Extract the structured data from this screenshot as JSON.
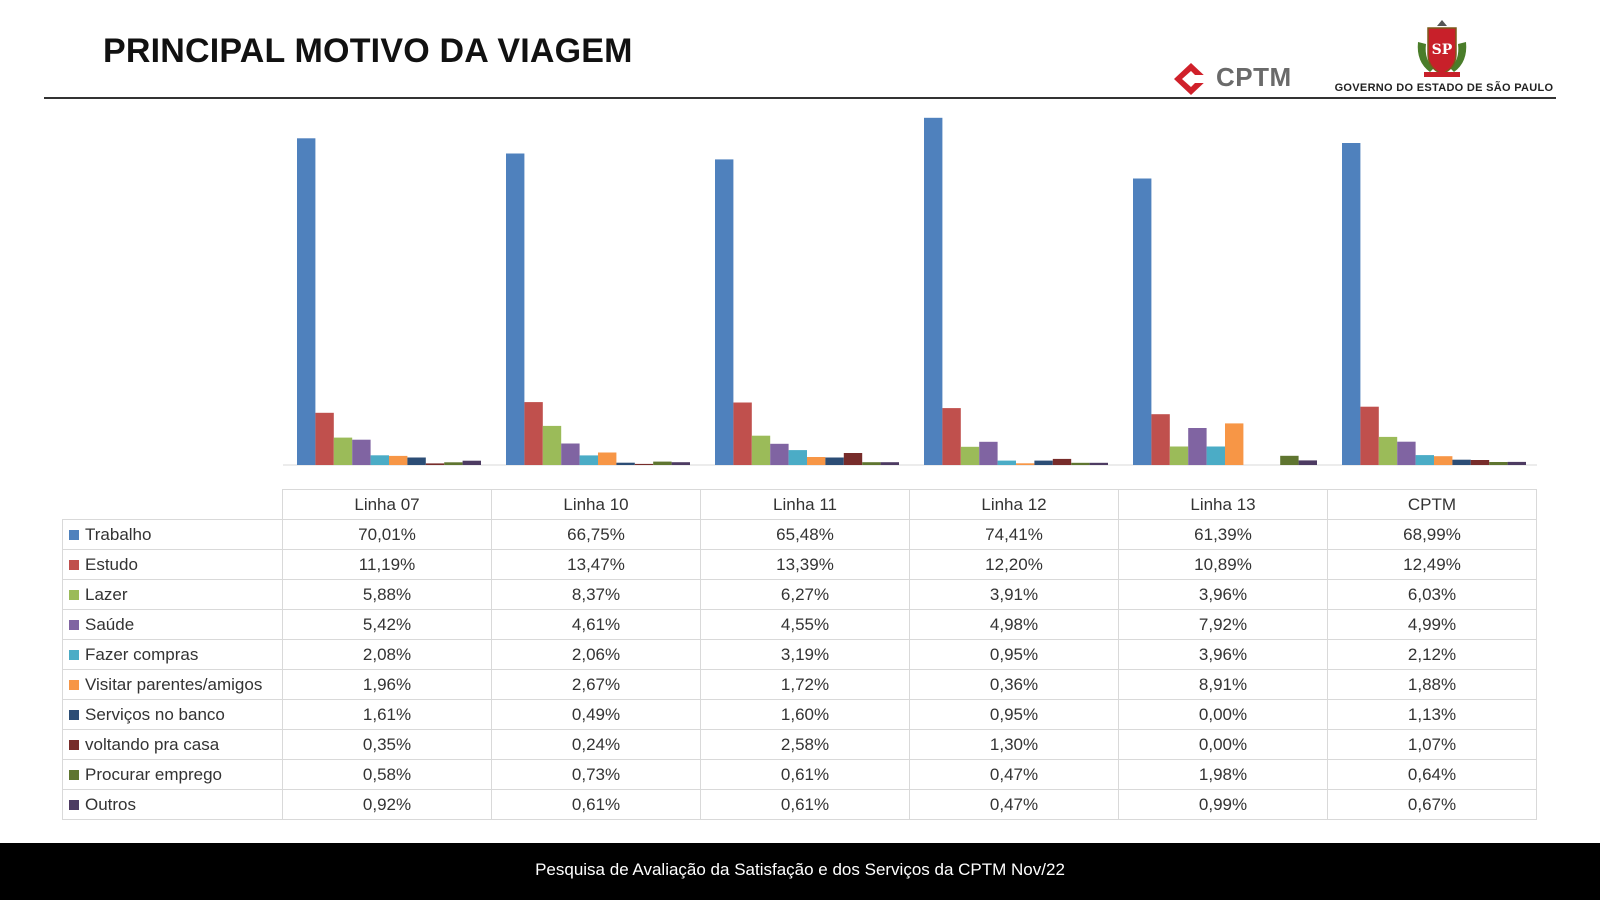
{
  "header": {
    "title": "PRINCIPAL MOTIVO DA VIAGEM",
    "cptm_logo_text": "CPTM",
    "gov_logo_text": "GOVERNO DO ESTADO DE SÃO PAULO",
    "seal_monogram": "SP",
    "brand_red": "#d0202a"
  },
  "footer": {
    "text": "Pesquisa de Avaliação da Satisfação e dos Serviços da CPTM Nov/22"
  },
  "chart_data": {
    "type": "bar",
    "categories": [
      "Linha 07",
      "Linha 10",
      "Linha 11",
      "Linha 12",
      "Linha 13",
      "CPTM"
    ],
    "ylim": [
      0,
      75
    ],
    "grid": false,
    "legend": "table-left",
    "series": [
      {
        "name": "Trabalho",
        "color": "#4f81bd",
        "values": [
          70.01,
          66.75,
          65.48,
          74.41,
          61.39,
          68.99
        ],
        "labels": [
          "70,01%",
          "66,75%",
          "65,48%",
          "74,41%",
          "61,39%",
          "68,99%"
        ]
      },
      {
        "name": "Estudo",
        "color": "#c0504d",
        "values": [
          11.19,
          13.47,
          13.39,
          12.2,
          10.89,
          12.49
        ],
        "labels": [
          "11,19%",
          "13,47%",
          "13,39%",
          "12,20%",
          "10,89%",
          "12,49%"
        ]
      },
      {
        "name": "Lazer",
        "color": "#9bbb59",
        "values": [
          5.88,
          8.37,
          6.27,
          3.91,
          3.96,
          6.03
        ],
        "labels": [
          "5,88%",
          "8,37%",
          "6,27%",
          "3,91%",
          "3,96%",
          "6,03%"
        ]
      },
      {
        "name": "Saúde",
        "color": "#8064a2",
        "values": [
          5.42,
          4.61,
          4.55,
          4.98,
          7.92,
          4.99
        ],
        "labels": [
          "5,42%",
          "4,61%",
          "4,55%",
          "4,98%",
          "7,92%",
          "4,99%"
        ]
      },
      {
        "name": "Fazer compras",
        "color": "#4bacc6",
        "values": [
          2.08,
          2.06,
          3.19,
          0.95,
          3.96,
          2.12
        ],
        "labels": [
          "2,08%",
          "2,06%",
          "3,19%",
          "0,95%",
          "3,96%",
          "2,12%"
        ]
      },
      {
        "name": "Visitar parentes/amigos",
        "color": "#f79646",
        "values": [
          1.96,
          2.67,
          1.72,
          0.36,
          8.91,
          1.88
        ],
        "labels": [
          "1,96%",
          "2,67%",
          "1,72%",
          "0,36%",
          "8,91%",
          "1,88%"
        ]
      },
      {
        "name": "Serviços no banco",
        "color": "#2c4d75",
        "values": [
          1.61,
          0.49,
          1.6,
          0.95,
          0.0,
          1.13
        ],
        "labels": [
          "1,61%",
          "0,49%",
          "1,60%",
          "0,95%",
          "0,00%",
          "1,13%"
        ]
      },
      {
        "name": "voltando pra casa",
        "color": "#772c2a",
        "values": [
          0.35,
          0.24,
          2.58,
          1.3,
          0.0,
          1.07
        ],
        "labels": [
          "0,35%",
          "0,24%",
          "2,58%",
          "1,30%",
          "0,00%",
          "1,07%"
        ]
      },
      {
        "name": "Procurar emprego",
        "color": "#5f7530",
        "values": [
          0.58,
          0.73,
          0.61,
          0.47,
          1.98,
          0.64
        ],
        "labels": [
          "0,58%",
          "0,73%",
          "0,61%",
          "0,47%",
          "1,98%",
          "0,64%"
        ]
      },
      {
        "name": "Outros",
        "color": "#4d3b62",
        "values": [
          0.92,
          0.61,
          0.61,
          0.47,
          0.99,
          0.67
        ],
        "labels": [
          "0,92%",
          "0,61%",
          "0,61%",
          "0,47%",
          "0,99%",
          "0,67%"
        ]
      }
    ]
  }
}
